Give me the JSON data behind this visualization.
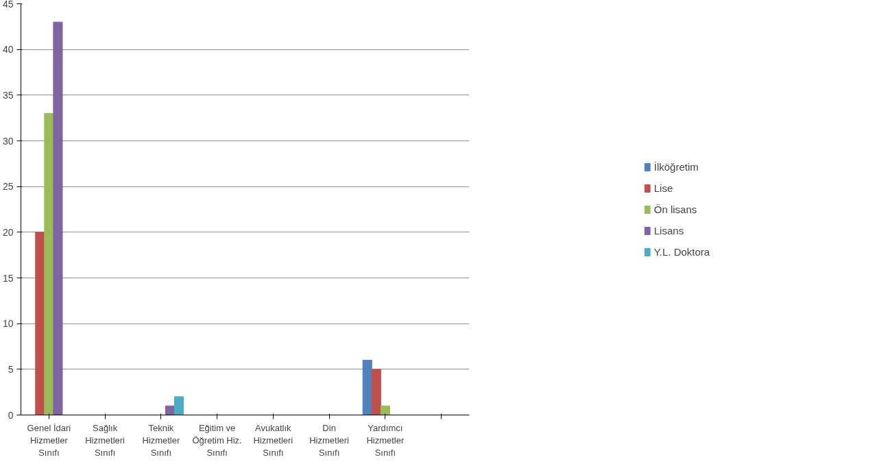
{
  "chart_data": {
    "type": "bar",
    "categories": [
      "Genel İdari Hizmetler Sınıfı",
      "Sağlık Hizmetleri Sınıfı",
      "Teknik Hizmetler Sınıfı",
      "Eğitim ve Öğretim Hiz. Sınıfı",
      "Avukatlık Hizmetleri Sınıfı",
      "Din Hizmetleri Sınıfı",
      "Yardımcı Hizmetler Sınıfı",
      null
    ],
    "series": [
      {
        "name": "İlköğretim",
        "color": "#4f81bd",
        "values": [
          0,
          0,
          0,
          0,
          0,
          0,
          6,
          0
        ]
      },
      {
        "name": "Lise",
        "color": "#c0504d",
        "values": [
          20,
          0,
          0,
          0,
          0,
          0,
          5,
          0
        ]
      },
      {
        "name": "Ön lisans",
        "color": "#9bbb59",
        "values": [
          33,
          0,
          0,
          0,
          0,
          0,
          1,
          0
        ]
      },
      {
        "name": "Lisans",
        "color": "#8064a2",
        "values": [
          43,
          0,
          1,
          0,
          0,
          0,
          0,
          0
        ]
      },
      {
        "name": "Y.L. Doktora",
        "color": "#4bacc6",
        "values": [
          0,
          0,
          2,
          0,
          0,
          0,
          0,
          0
        ]
      }
    ],
    "ylim": [
      0,
      45
    ],
    "yticks": [
      0,
      5,
      10,
      15,
      20,
      25,
      30,
      35,
      40,
      45
    ],
    "grid": "y",
    "legend": "right"
  }
}
